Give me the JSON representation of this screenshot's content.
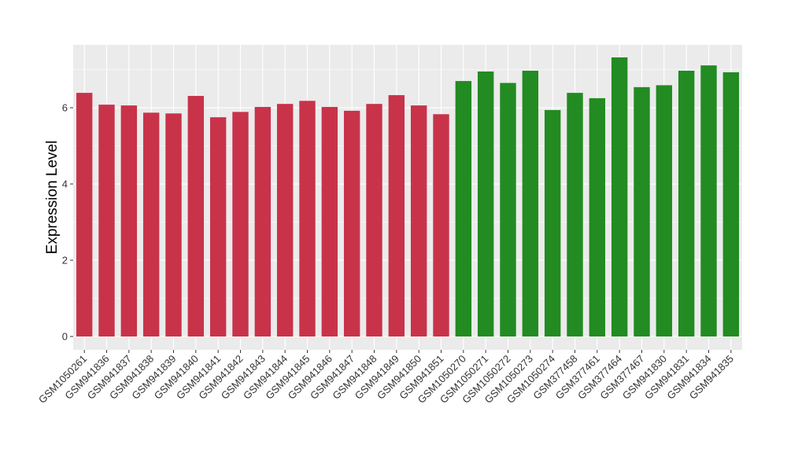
{
  "chart_data": {
    "type": "bar",
    "ylabel": "Expression Level",
    "xlabel": "",
    "ylim": [
      0,
      7.65
    ],
    "yticks": [
      0,
      2,
      4,
      6
    ],
    "grid": true,
    "categories": [
      "GSM1050261",
      "GSM941836",
      "GSM941837",
      "GSM941838",
      "GSM941839",
      "GSM941840",
      "GSM941841",
      "GSM941842",
      "GSM941843",
      "GSM941844",
      "GSM941845",
      "GSM941846",
      "GSM941847",
      "GSM941848",
      "GSM941849",
      "GSM941850",
      "GSM941851",
      "GSM1050270",
      "GSM1050271",
      "GSM1050272",
      "GSM1050273",
      "GSM1050274",
      "GSM377458",
      "GSM377461",
      "GSM377464",
      "GSM377467",
      "GSM941830",
      "GSM941831",
      "GSM941834",
      "GSM941835"
    ],
    "values": [
      6.39,
      6.08,
      6.06,
      5.87,
      5.85,
      6.31,
      5.75,
      5.89,
      6.02,
      6.1,
      6.18,
      6.02,
      5.92,
      6.1,
      6.33,
      6.06,
      5.83,
      6.7,
      6.95,
      6.65,
      6.97,
      5.94,
      6.39,
      6.25,
      7.32,
      6.54,
      6.59,
      6.97,
      7.11,
      6.93
    ],
    "bar_colors": [
      "#C8334A",
      "#C8334A",
      "#C8334A",
      "#C8334A",
      "#C8334A",
      "#C8334A",
      "#C8334A",
      "#C8334A",
      "#C8334A",
      "#C8334A",
      "#C8334A",
      "#C8334A",
      "#C8334A",
      "#C8334A",
      "#C8334A",
      "#C8334A",
      "#C8334A",
      "#228B22",
      "#228B22",
      "#228B22",
      "#228B22",
      "#228B22",
      "#228B22",
      "#228B22",
      "#228B22",
      "#228B22",
      "#228B22",
      "#228B22",
      "#228B22",
      "#228B22"
    ],
    "panel_color": "#EBEBEB",
    "grid_color": "#FFFFFF"
  }
}
